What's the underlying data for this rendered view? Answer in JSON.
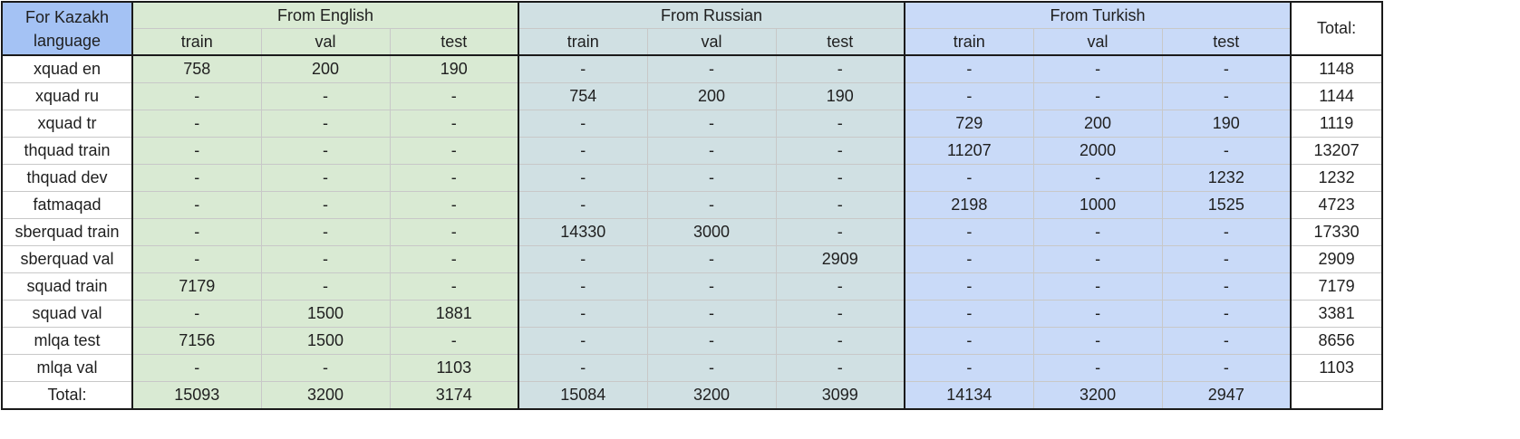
{
  "corner_label": "For Kazakh language",
  "groups": [
    {
      "label": "From English",
      "color": "#d9ead3"
    },
    {
      "label": "From Russian",
      "color": "#d0e0e3"
    },
    {
      "label": "From Turkish",
      "color": "#c9daf8"
    }
  ],
  "subheaders": [
    "train",
    "val",
    "test",
    "train",
    "val",
    "test",
    "train",
    "val",
    "test"
  ],
  "total_header": "Total:",
  "rows": [
    {
      "label": "xquad en",
      "cells": [
        "758",
        "200",
        "190",
        "-",
        "-",
        "-",
        "-",
        "-",
        "-"
      ],
      "total": "1148"
    },
    {
      "label": "xquad ru",
      "cells": [
        "-",
        "-",
        "-",
        "754",
        "200",
        "190",
        "-",
        "-",
        "-"
      ],
      "total": "1144"
    },
    {
      "label": "xquad tr",
      "cells": [
        "-",
        "-",
        "-",
        "-",
        "-",
        "-",
        "729",
        "200",
        "190"
      ],
      "total": "1119"
    },
    {
      "label": "thquad train",
      "cells": [
        "-",
        "-",
        "-",
        "-",
        "-",
        "-",
        "11207",
        "2000",
        "-"
      ],
      "total": "13207"
    },
    {
      "label": "thquad dev",
      "cells": [
        "-",
        "-",
        "-",
        "-",
        "-",
        "-",
        "-",
        "-",
        "1232"
      ],
      "total": "1232"
    },
    {
      "label": "fatmaqad",
      "cells": [
        "-",
        "-",
        "-",
        "-",
        "-",
        "-",
        "2198",
        "1000",
        "1525"
      ],
      "total": "4723"
    },
    {
      "label": "sberquad train",
      "cells": [
        "-",
        "-",
        "-",
        "14330",
        "3000",
        "-",
        "-",
        "-",
        "-"
      ],
      "total": "17330"
    },
    {
      "label": "sberquad val",
      "cells": [
        "-",
        "-",
        "-",
        "-",
        "-",
        "2909",
        "-",
        "-",
        "-"
      ],
      "total": "2909"
    },
    {
      "label": "squad train",
      "cells": [
        "7179",
        "-",
        "-",
        "-",
        "-",
        "-",
        "-",
        "-",
        "-"
      ],
      "total": "7179"
    },
    {
      "label": "squad val",
      "cells": [
        "-",
        "1500",
        "1881",
        "-",
        "-",
        "-",
        "-",
        "-",
        "-"
      ],
      "total": "3381"
    },
    {
      "label": "mlqa test",
      "cells": [
        "7156",
        "1500",
        "-",
        "-",
        "-",
        "-",
        "-",
        "-",
        "-"
      ],
      "total": "8656"
    },
    {
      "label": "mlqa val",
      "cells": [
        "-",
        "-",
        "1103",
        "-",
        "-",
        "-",
        "-",
        "-",
        "-"
      ],
      "total": "1103"
    }
  ],
  "totals_row": {
    "label": "Total:",
    "cells": [
      "15093",
      "3200",
      "3174",
      "15084",
      "3200",
      "3099",
      "14134",
      "3200",
      "2947"
    ],
    "total": ""
  }
}
